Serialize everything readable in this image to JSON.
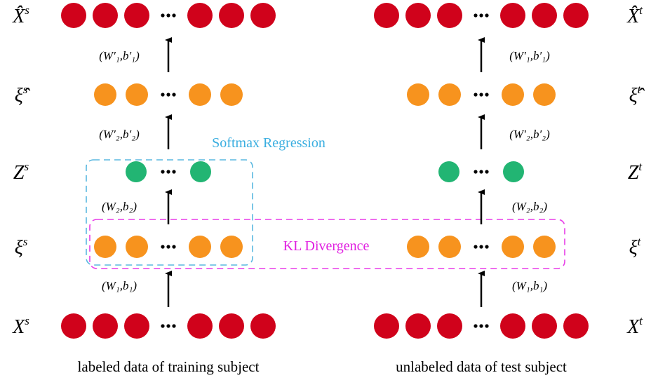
{
  "rows_left": [
    {
      "symbol": "X̂",
      "sup": "s"
    },
    {
      "symbol": "ξ̂",
      "sup": "s"
    },
    {
      "symbol": "Z",
      "sup": "s"
    },
    {
      "symbol": "ξ",
      "sup": "s"
    },
    {
      "symbol": "X",
      "sup": "s"
    }
  ],
  "rows_right": [
    {
      "symbol": "X̂",
      "sup": "t"
    },
    {
      "symbol": "ξ̂",
      "sup": "t"
    },
    {
      "symbol": "Z",
      "sup": "t"
    },
    {
      "symbol": "ξ",
      "sup": "t"
    },
    {
      "symbol": "X",
      "sup": "t"
    }
  ],
  "weights_left": [
    "(W′₁,b′₁)",
    "(W′₂,b′₂)",
    "(W₂,b₂)",
    "(W₁,b₁)"
  ],
  "weights_right": [
    "(W′₁,b′₁)",
    "(W′₂,b′₂)",
    "(W₂,b₂)",
    "(W₁,b₁)"
  ],
  "annotations": {
    "softmax": "Softmax Regression",
    "kl": "KL Divergence"
  },
  "captions": [
    "labeled data of training subject",
    "unlabeled data of test subject"
  ]
}
